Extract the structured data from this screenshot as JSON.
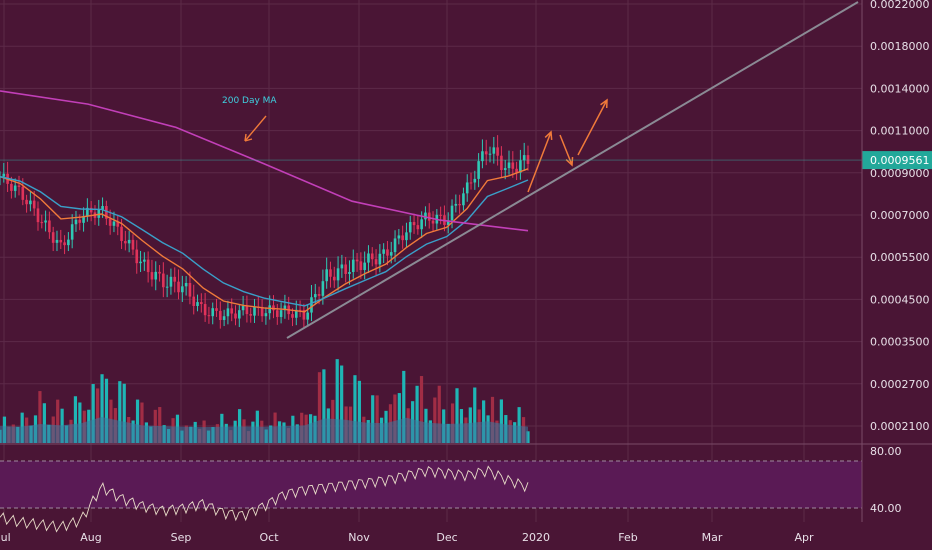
{
  "chart_data": [
    {
      "type": "candlestick",
      "x_labels": [
        "Jul",
        "Aug",
        "Sep",
        "Oct",
        "Nov",
        "Dec",
        "2020",
        "Feb",
        "Mar",
        "Apr"
      ],
      "y_ticks": [
        "0.0022000",
        "0.0018000",
        "0.0014000",
        "0.0011000",
        "0.0009000",
        "0.0007000",
        "0.0005500",
        "0.0004500",
        "0.0003500",
        "0.0002700",
        "0.0002100"
      ],
      "y_scale": "log",
      "last_price": "0.0009561",
      "annotations": [
        "200 Day MA"
      ],
      "series": [
        {
          "name": "price",
          "x": [
            "Jul 1",
            "Jul 8",
            "Jul 15",
            "Jul 22",
            "Jul 29",
            "Aug 5",
            "Aug 12",
            "Aug 19",
            "Aug 26",
            "Sep 2",
            "Sep 9",
            "Sep 16",
            "Sep 23",
            "Sep 30",
            "Oct 7",
            "Oct 14",
            "Oct 21",
            "Oct 28",
            "Nov 4",
            "Nov 11",
            "Nov 18",
            "Nov 25",
            "Dec 2",
            "Dec 9",
            "Dec 16",
            "Dec 23",
            "Dec 28"
          ],
          "values": [
            0.00088,
            0.0008,
            0.00068,
            0.00058,
            0.0007,
            0.00072,
            0.00062,
            0.00053,
            0.00049,
            0.00048,
            0.00042,
            0.00041,
            0.00042,
            0.00042,
            0.00042,
            0.00041,
            0.0005,
            0.00052,
            0.00054,
            0.00056,
            0.00064,
            0.00069,
            0.00068,
            0.00082,
            0.00102,
            0.00091,
            0.00096
          ]
        },
        {
          "name": "200 Day MA",
          "x": [
            "Jul 1",
            "Aug 5",
            "Sep 2",
            "Oct 7",
            "Nov 4",
            "Dec 2",
            "Dec 28"
          ],
          "values": [
            0.00138,
            0.00128,
            0.00112,
            0.00094,
            0.00076,
            0.00068,
            0.00064
          ]
        }
      ],
      "volume": [
        0.35,
        0.3,
        0.5,
        0.4,
        0.55,
        1.0,
        0.7,
        0.4,
        0.35,
        0.3,
        0.28,
        0.3,
        0.32,
        0.3,
        0.35,
        0.4,
        0.9,
        0.8,
        0.6,
        0.55,
        0.95,
        0.6,
        0.5,
        0.55,
        0.7,
        0.45,
        0.3
      ],
      "rsi": {
        "levels": [
          "80.00",
          "40.00"
        ],
        "values": [
          32,
          28,
          26,
          24,
          30,
          58,
          48,
          42,
          38,
          40,
          44,
          36,
          34,
          42,
          52,
          56,
          58,
          60,
          62,
          64,
          68,
          72,
          70,
          68,
          72,
          64,
          58
        ]
      }
    }
  ]
}
